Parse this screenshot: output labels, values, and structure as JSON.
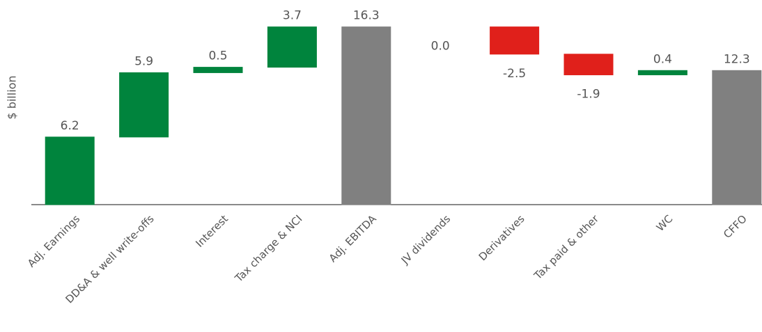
{
  "chart_data": {
    "type": "waterfall",
    "y_label": "$ billion",
    "categories": [
      "Adj. Earnings",
      "DD&A & well write-offs",
      "Interest",
      "Tax charge & NCI",
      "Adj. EBITDA",
      "JV dividends",
      "Derivatives",
      "Tax paid & other",
      "WC",
      "CFFO"
    ],
    "values": [
      6.2,
      5.9,
      0.5,
      3.7,
      16.3,
      0,
      -2.5,
      -1.9,
      0.4,
      12.3
    ],
    "value_labels": [
      "6.2",
      "5.9",
      "0.5",
      "3.7",
      "16.3",
      "0.0",
      "-2.5",
      "-1.9",
      "0.4",
      "12.3"
    ],
    "totals": [
      4,
      9
    ],
    "colors": {
      "increase": "#00843d",
      "decrease": "#e0201b",
      "total": "#808080"
    },
    "ylim": [
      0,
      18
    ]
  }
}
